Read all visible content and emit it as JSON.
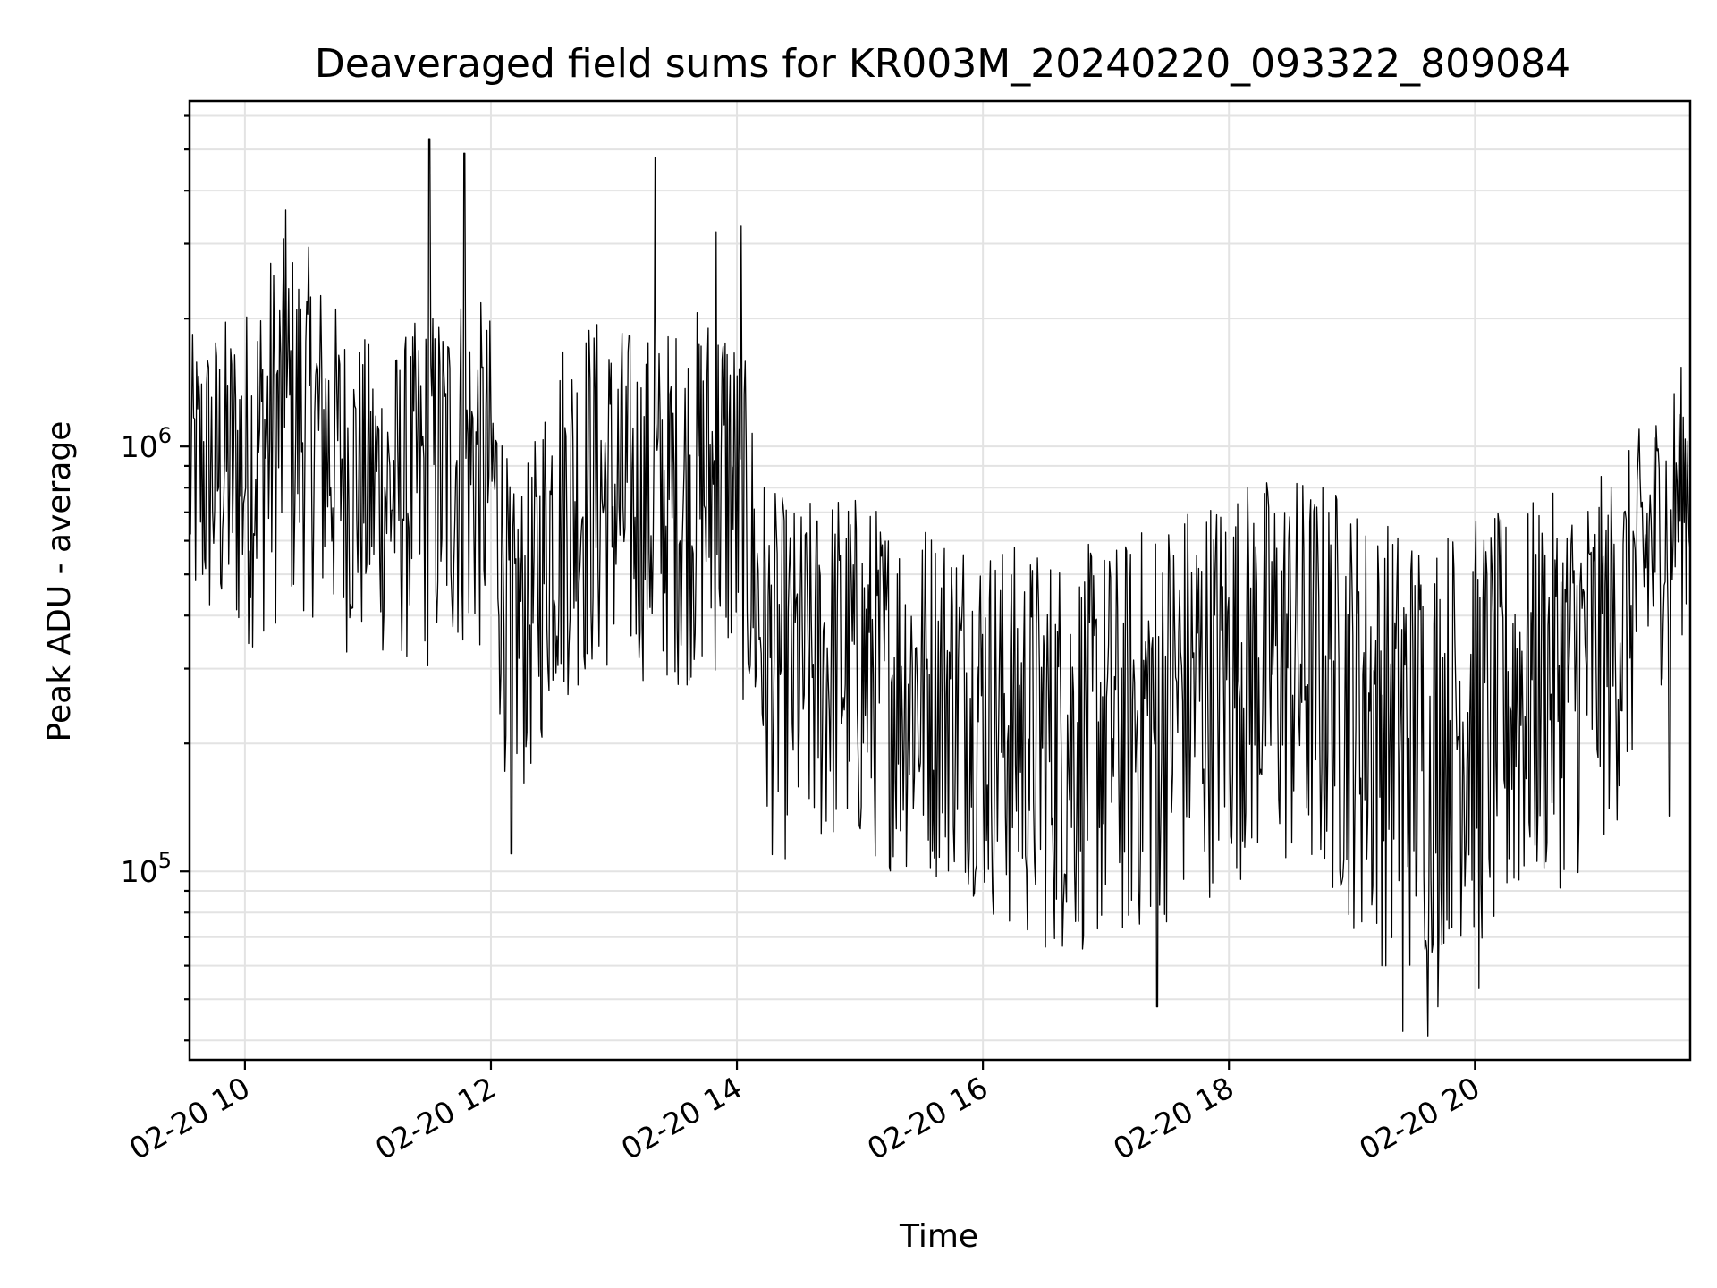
{
  "chart_data": {
    "type": "line",
    "title": "Deaveraged field sums for KR003M_20240220_093322_809084",
    "xlabel": "Time",
    "ylabel": "Peak ADU - average",
    "y_scale": "log",
    "ylim": [
      36000,
      6500000
    ],
    "xlim": [
      "2024-02-20 09:33",
      "2024-02-20 21:45"
    ],
    "grid": true,
    "x_tick_labels": [
      "02-20 10",
      "02-20 12",
      "02-20 14",
      "02-20 16",
      "02-20 18",
      "02-20 20"
    ],
    "x_tick_values": [
      "2024-02-20 10:00",
      "2024-02-20 12:00",
      "2024-02-20 14:00",
      "2024-02-20 16:00",
      "2024-02-20 18:00",
      "2024-02-20 20:00"
    ],
    "y_tick_labels": [
      {
        "base": "10",
        "exp": "5"
      },
      {
        "base": "10",
        "exp": "6"
      }
    ],
    "y_tick_values": [
      100000,
      1000000
    ],
    "series": [
      {
        "color": "#000000",
        "x": [
          "2024-02-20 09:33",
          "2024-02-20 10:00",
          "2024-02-20 10:15",
          "2024-02-20 10:30",
          "2024-02-20 10:50",
          "2024-02-20 11:10",
          "2024-02-20 11:30",
          "2024-02-20 11:45",
          "2024-02-20 12:00",
          "2024-02-20 12:10",
          "2024-02-20 12:20",
          "2024-02-20 12:30",
          "2024-02-20 12:45",
          "2024-02-20 13:00",
          "2024-02-20 13:20",
          "2024-02-20 13:40",
          "2024-02-20 13:55",
          "2024-02-20 14:05",
          "2024-02-20 14:15",
          "2024-02-20 14:30",
          "2024-02-20 14:50",
          "2024-02-20 15:10",
          "2024-02-20 15:30",
          "2024-02-20 15:50",
          "2024-02-20 16:10",
          "2024-02-20 16:30",
          "2024-02-20 16:50",
          "2024-02-20 17:10",
          "2024-02-20 17:30",
          "2024-02-20 17:50",
          "2024-02-20 18:10",
          "2024-02-20 18:30",
          "2024-02-20 18:50",
          "2024-02-20 19:10",
          "2024-02-20 19:30",
          "2024-02-20 19:50",
          "2024-02-20 20:10",
          "2024-02-20 20:30",
          "2024-02-20 20:50",
          "2024-02-20 21:10",
          "2024-02-20 21:25",
          "2024-02-20 21:45"
        ],
        "y": [
          900000,
          950000,
          1100000,
          1200000,
          950000,
          800000,
          850000,
          950000,
          900000,
          450000,
          420000,
          700000,
          800000,
          750000,
          700000,
          800000,
          850000,
          600000,
          320000,
          300000,
          330000,
          300000,
          280000,
          280000,
          240000,
          220000,
          220000,
          230000,
          260000,
          300000,
          340000,
          330000,
          300000,
          260000,
          230000,
          240000,
          260000,
          300000,
          330000,
          380000,
          600000,
          900000
        ],
        "y_spread_low": [
          0.35,
          0.3,
          0.3,
          0.3,
          0.3,
          0.35,
          0.3,
          0.3,
          0.3,
          0.25,
          0.35,
          0.3,
          0.3,
          0.35,
          0.35,
          0.3,
          0.3,
          0.35,
          0.3,
          0.3,
          0.3,
          0.3,
          0.3,
          0.3,
          0.25,
          0.25,
          0.25,
          0.25,
          0.25,
          0.25,
          0.25,
          0.25,
          0.25,
          0.2,
          0.2,
          0.25,
          0.2,
          0.25,
          0.25,
          0.3,
          0.35,
          0.4
        ],
        "y_spread_high": [
          2.2,
          2.5,
          3.2,
          2.8,
          2.2,
          2.3,
          2.8,
          3.0,
          2.5,
          1.8,
          2.5,
          3.0,
          3.0,
          3.0,
          3.0,
          3.0,
          3.3,
          2.8,
          2.8,
          2.7,
          2.8,
          2.7,
          2.8,
          2.7,
          2.8,
          3.0,
          3.0,
          3.0,
          3.2,
          3.0,
          2.8,
          3.0,
          3.2,
          3.0,
          3.3,
          3.2,
          3.0,
          2.8,
          2.7,
          2.6,
          2.2,
          2.0
        ],
        "spikes": [
          {
            "x": "2024-02-20 11:30",
            "y": 5300000
          },
          {
            "x": "2024-02-20 11:47",
            "y": 4900000
          },
          {
            "x": "2024-02-20 13:20",
            "y": 4800000
          },
          {
            "x": "2024-02-20 10:20",
            "y": 3600000
          },
          {
            "x": "2024-02-20 13:50",
            "y": 3200000
          },
          {
            "x": "2024-02-20 14:02",
            "y": 3300000
          },
          {
            "x": "2024-02-20 12:10",
            "y": 110000
          },
          {
            "x": "2024-02-20 17:25",
            "y": 48000
          },
          {
            "x": "2024-02-20 19:25",
            "y": 42000
          },
          {
            "x": "2024-02-20 19:37",
            "y": 41000
          },
          {
            "x": "2024-02-20 19:42",
            "y": 48000
          },
          {
            "x": "2024-02-20 20:02",
            "y": 53000
          },
          {
            "x": "2024-02-20 21:35",
            "y": 135000
          }
        ]
      }
    ]
  }
}
